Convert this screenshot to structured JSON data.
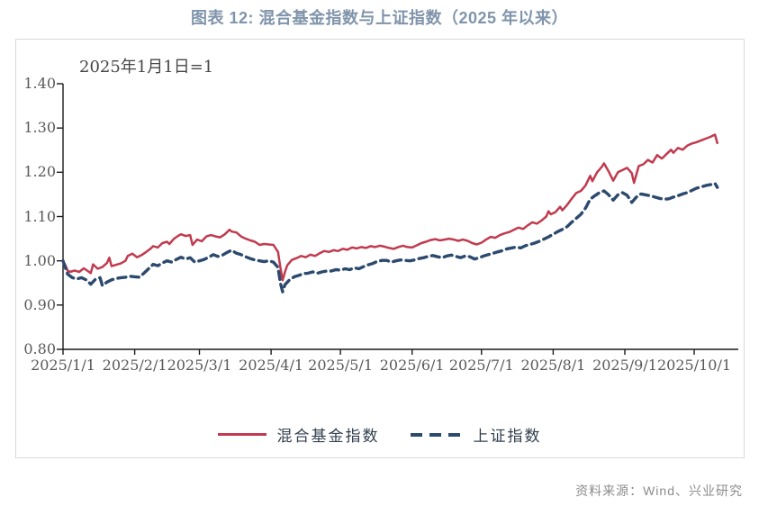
{
  "header": {
    "title": "图表 12: 混合基金指数与上证指数（2025 年以来）"
  },
  "chart": {
    "annotation": "2025年1月1日=1"
  },
  "legend": {
    "items": [
      {
        "label": "混合基金指数",
        "color": "#C13A4F",
        "style": "solid"
      },
      {
        "label": "上证指数",
        "color": "#2C4A6E",
        "style": "dashed"
      }
    ]
  },
  "footer": {
    "source": "资料来源：Wind、兴业研究"
  },
  "colors": {
    "fund_line": "#C13A4F",
    "sse_line": "#2C4A6E",
    "axis": "#1a1a1a",
    "tick_text": "#595959",
    "title_text": "#8094AB",
    "frame_border": "#d9d9d9",
    "source_text": "#8c8c8c"
  },
  "chart_data": {
    "type": "line",
    "title": "混合基金指数与上证指数（2025 年以来）",
    "note": "2025年1月1日=1",
    "x_axis": {
      "tick_labels": [
        "2025/1/1",
        "2025/2/1",
        "2025/3/1",
        "2025/4/1",
        "2025/5/1",
        "2025/6/1",
        "2025/7/1",
        "2025/8/1",
        "2025/9/1",
        "2025/10/1"
      ],
      "tick_days": [
        0,
        31,
        59,
        90,
        120,
        151,
        181,
        212,
        243,
        273
      ],
      "day_max": 283
    },
    "y_axis": {
      "tick_labels": [
        "1.40",
        "1.30",
        "1.20",
        "1.10",
        "1.00",
        "0.90",
        "0.80"
      ],
      "tick_values": [
        1.4,
        1.3,
        1.2,
        1.1,
        1.0,
        0.9,
        0.8
      ],
      "min": 0.8,
      "max": 1.4
    },
    "grid": false,
    "legend_position": "bottom",
    "series": [
      {
        "name": "混合基金指数",
        "color": "#C13A4F",
        "style": "solid",
        "points": [
          [
            0,
            1.0
          ],
          [
            1,
            0.99
          ],
          [
            2,
            0.978
          ],
          [
            3,
            0.975
          ],
          [
            5,
            0.978
          ],
          [
            7,
            0.975
          ],
          [
            9,
            0.983
          ],
          [
            11,
            0.976
          ],
          [
            12,
            0.972
          ],
          [
            13,
            0.992
          ],
          [
            15,
            0.982
          ],
          [
            17,
            0.986
          ],
          [
            19,
            0.995
          ],
          [
            20,
            1.007
          ],
          [
            21,
            0.988
          ],
          [
            23,
            0.991
          ],
          [
            25,
            0.994
          ],
          [
            27,
            1.0
          ],
          [
            28,
            1.011
          ],
          [
            30,
            1.016
          ],
          [
            32,
            1.008
          ],
          [
            34,
            1.013
          ],
          [
            36,
            1.02
          ],
          [
            38,
            1.028
          ],
          [
            39,
            1.033
          ],
          [
            41,
            1.03
          ],
          [
            43,
            1.04
          ],
          [
            45,
            1.043
          ],
          [
            46,
            1.038
          ],
          [
            48,
            1.05
          ],
          [
            50,
            1.057
          ],
          [
            51,
            1.06
          ],
          [
            53,
            1.056
          ],
          [
            55,
            1.058
          ],
          [
            56,
            1.036
          ],
          [
            58,
            1.048
          ],
          [
            60,
            1.044
          ],
          [
            62,
            1.055
          ],
          [
            64,
            1.058
          ],
          [
            66,
            1.055
          ],
          [
            68,
            1.053
          ],
          [
            70,
            1.06
          ],
          [
            72,
            1.07
          ],
          [
            73,
            1.066
          ],
          [
            75,
            1.064
          ],
          [
            77,
            1.055
          ],
          [
            79,
            1.05
          ],
          [
            81,
            1.046
          ],
          [
            83,
            1.043
          ],
          [
            85,
            1.036
          ],
          [
            87,
            1.038
          ],
          [
            89,
            1.037
          ],
          [
            91,
            1.036
          ],
          [
            93,
            1.02
          ],
          [
            94,
            0.985
          ],
          [
            95,
            0.956
          ],
          [
            96,
            0.975
          ],
          [
            97,
            0.99
          ],
          [
            99,
            1.002
          ],
          [
            101,
            1.006
          ],
          [
            103,
            1.011
          ],
          [
            105,
            1.008
          ],
          [
            107,
            1.014
          ],
          [
            109,
            1.011
          ],
          [
            111,
            1.017
          ],
          [
            113,
            1.022
          ],
          [
            115,
            1.02
          ],
          [
            117,
            1.024
          ],
          [
            119,
            1.022
          ],
          [
            121,
            1.027
          ],
          [
            123,
            1.025
          ],
          [
            125,
            1.03
          ],
          [
            127,
            1.028
          ],
          [
            129,
            1.031
          ],
          [
            131,
            1.029
          ],
          [
            133,
            1.033
          ],
          [
            135,
            1.031
          ],
          [
            137,
            1.034
          ],
          [
            139,
            1.032
          ],
          [
            141,
            1.029
          ],
          [
            143,
            1.027
          ],
          [
            145,
            1.031
          ],
          [
            147,
            1.034
          ],
          [
            149,
            1.031
          ],
          [
            151,
            1.03
          ],
          [
            153,
            1.035
          ],
          [
            155,
            1.04
          ],
          [
            157,
            1.043
          ],
          [
            159,
            1.047
          ],
          [
            161,
            1.049
          ],
          [
            163,
            1.046
          ],
          [
            165,
            1.048
          ],
          [
            167,
            1.05
          ],
          [
            169,
            1.048
          ],
          [
            171,
            1.045
          ],
          [
            173,
            1.048
          ],
          [
            175,
            1.045
          ],
          [
            177,
            1.04
          ],
          [
            179,
            1.037
          ],
          [
            181,
            1.041
          ],
          [
            183,
            1.048
          ],
          [
            185,
            1.054
          ],
          [
            187,
            1.052
          ],
          [
            189,
            1.058
          ],
          [
            191,
            1.062
          ],
          [
            193,
            1.065
          ],
          [
            195,
            1.07
          ],
          [
            197,
            1.075
          ],
          [
            199,
            1.072
          ],
          [
            201,
            1.08
          ],
          [
            203,
            1.087
          ],
          [
            205,
            1.084
          ],
          [
            207,
            1.091
          ],
          [
            209,
            1.1
          ],
          [
            210,
            1.112
          ],
          [
            211,
            1.105
          ],
          [
            213,
            1.11
          ],
          [
            215,
            1.122
          ],
          [
            216,
            1.114
          ],
          [
            218,
            1.126
          ],
          [
            220,
            1.14
          ],
          [
            222,
            1.153
          ],
          [
            224,
            1.158
          ],
          [
            226,
            1.17
          ],
          [
            228,
            1.192
          ],
          [
            229,
            1.18
          ],
          [
            231,
            1.2
          ],
          [
            233,
            1.212
          ],
          [
            234,
            1.22
          ],
          [
            236,
            1.202
          ],
          [
            238,
            1.181
          ],
          [
            240,
            1.2
          ],
          [
            242,
            1.205
          ],
          [
            244,
            1.21
          ],
          [
            246,
            1.198
          ],
          [
            247,
            1.176
          ],
          [
            249,
            1.214
          ],
          [
            251,
            1.218
          ],
          [
            253,
            1.228
          ],
          [
            255,
            1.222
          ],
          [
            257,
            1.239
          ],
          [
            259,
            1.231
          ],
          [
            261,
            1.241
          ],
          [
            263,
            1.251
          ],
          [
            264,
            1.244
          ],
          [
            266,
            1.255
          ],
          [
            268,
            1.251
          ],
          [
            270,
            1.26
          ],
          [
            272,
            1.265
          ],
          [
            274,
            1.268
          ],
          [
            276,
            1.272
          ],
          [
            278,
            1.276
          ],
          [
            280,
            1.28
          ],
          [
            282,
            1.285
          ],
          [
            283,
            1.266
          ]
        ]
      },
      {
        "name": "上证指数",
        "color": "#2C4A6E",
        "style": "dashed",
        "points": [
          [
            0,
            1.0
          ],
          [
            1,
            0.984
          ],
          [
            2,
            0.97
          ],
          [
            4,
            0.962
          ],
          [
            6,
            0.959
          ],
          [
            8,
            0.962
          ],
          [
            10,
            0.957
          ],
          [
            12,
            0.947
          ],
          [
            14,
            0.958
          ],
          [
            16,
            0.962
          ],
          [
            17,
            0.944
          ],
          [
            19,
            0.952
          ],
          [
            21,
            0.957
          ],
          [
            23,
            0.96
          ],
          [
            25,
            0.962
          ],
          [
            27,
            0.963
          ],
          [
            29,
            0.965
          ],
          [
            31,
            0.964
          ],
          [
            33,
            0.963
          ],
          [
            35,
            0.972
          ],
          [
            37,
            0.982
          ],
          [
            39,
            0.992
          ],
          [
            41,
            0.989
          ],
          [
            43,
            0.995
          ],
          [
            45,
            1.0
          ],
          [
            47,
            0.997
          ],
          [
            49,
            1.003
          ],
          [
            51,
            1.008
          ],
          [
            53,
            1.004
          ],
          [
            55,
            1.007
          ],
          [
            57,
            0.997
          ],
          [
            59,
            1.0
          ],
          [
            61,
            1.003
          ],
          [
            63,
            1.008
          ],
          [
            65,
            1.014
          ],
          [
            67,
            1.01
          ],
          [
            69,
            1.013
          ],
          [
            71,
            1.019
          ],
          [
            73,
            1.024
          ],
          [
            75,
            1.017
          ],
          [
            77,
            1.014
          ],
          [
            79,
            1.009
          ],
          [
            81,
            1.005
          ],
          [
            83,
            1.002
          ],
          [
            85,
            1.0
          ],
          [
            87,
            0.998
          ],
          [
            89,
            1.0
          ],
          [
            91,
            0.997
          ],
          [
            93,
            0.985
          ],
          [
            94,
            0.95
          ],
          [
            95,
            0.93
          ],
          [
            96,
            0.946
          ],
          [
            98,
            0.957
          ],
          [
            100,
            0.964
          ],
          [
            102,
            0.967
          ],
          [
            104,
            0.971
          ],
          [
            106,
            0.972
          ],
          [
            108,
            0.975
          ],
          [
            110,
            0.972
          ],
          [
            112,
            0.975
          ],
          [
            114,
            0.977
          ],
          [
            116,
            0.977
          ],
          [
            118,
            0.98
          ],
          [
            120,
            0.979
          ],
          [
            122,
            0.982
          ],
          [
            124,
            0.98
          ],
          [
            126,
            0.984
          ],
          [
            128,
            0.982
          ],
          [
            130,
            0.987
          ],
          [
            132,
            0.991
          ],
          [
            134,
            0.994
          ],
          [
            136,
            0.999
          ],
          [
            138,
            1.001
          ],
          [
            140,
            1.001
          ],
          [
            142,
            0.997
          ],
          [
            144,
            1.0
          ],
          [
            146,
            1.002
          ],
          [
            148,
            1.001
          ],
          [
            150,
            1.0
          ],
          [
            152,
            1.002
          ],
          [
            154,
            1.005
          ],
          [
            156,
            1.007
          ],
          [
            158,
            1.01
          ],
          [
            160,
            1.012
          ],
          [
            162,
            1.009
          ],
          [
            164,
            1.007
          ],
          [
            166,
            1.011
          ],
          [
            168,
            1.013
          ],
          [
            170,
            1.01
          ],
          [
            172,
            1.007
          ],
          [
            174,
            1.011
          ],
          [
            176,
            1.009
          ],
          [
            178,
            1.004
          ],
          [
            180,
            1.007
          ],
          [
            182,
            1.011
          ],
          [
            184,
            1.014
          ],
          [
            186,
            1.017
          ],
          [
            188,
            1.02
          ],
          [
            190,
            1.023
          ],
          [
            192,
            1.027
          ],
          [
            194,
            1.029
          ],
          [
            196,
            1.031
          ],
          [
            198,
            1.029
          ],
          [
            200,
            1.034
          ],
          [
            202,
            1.037
          ],
          [
            204,
            1.04
          ],
          [
            206,
            1.044
          ],
          [
            208,
            1.049
          ],
          [
            210,
            1.054
          ],
          [
            212,
            1.06
          ],
          [
            214,
            1.066
          ],
          [
            216,
            1.071
          ],
          [
            218,
            1.077
          ],
          [
            220,
            1.087
          ],
          [
            222,
            1.096
          ],
          [
            224,
            1.105
          ],
          [
            226,
            1.119
          ],
          [
            228,
            1.139
          ],
          [
            230,
            1.147
          ],
          [
            232,
            1.154
          ],
          [
            234,
            1.158
          ],
          [
            236,
            1.149
          ],
          [
            238,
            1.137
          ],
          [
            240,
            1.149
          ],
          [
            242,
            1.154
          ],
          [
            244,
            1.148
          ],
          [
            246,
            1.132
          ],
          [
            248,
            1.144
          ],
          [
            250,
            1.151
          ],
          [
            252,
            1.149
          ],
          [
            254,
            1.147
          ],
          [
            256,
            1.144
          ],
          [
            258,
            1.141
          ],
          [
            260,
            1.139
          ],
          [
            262,
            1.14
          ],
          [
            264,
            1.144
          ],
          [
            266,
            1.147
          ],
          [
            268,
            1.151
          ],
          [
            270,
            1.154
          ],
          [
            272,
            1.159
          ],
          [
            274,
            1.164
          ],
          [
            276,
            1.167
          ],
          [
            278,
            1.17
          ],
          [
            280,
            1.172
          ],
          [
            282,
            1.175
          ],
          [
            283,
            1.166
          ]
        ]
      }
    ]
  }
}
